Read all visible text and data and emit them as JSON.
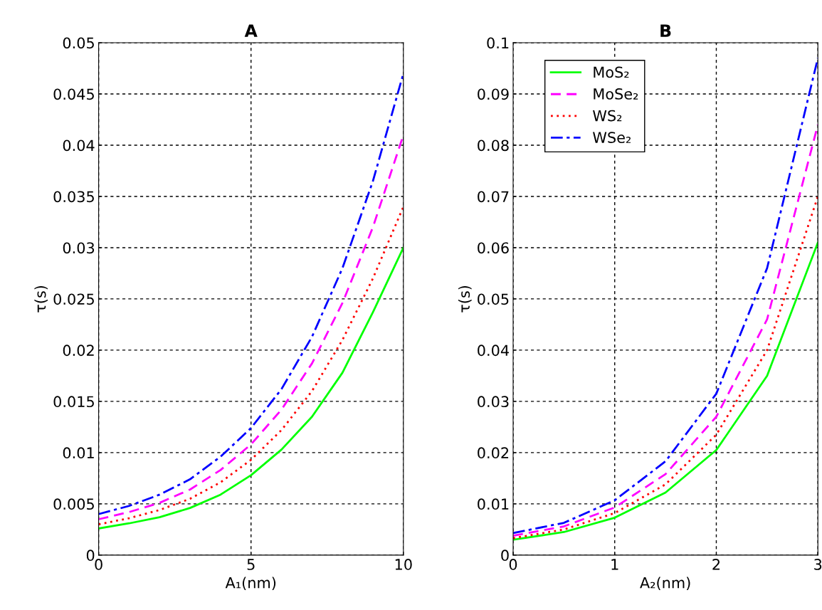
{
  "chart_data": [
    {
      "type": "line",
      "title": "A",
      "xlabel": "A₁(nm)",
      "ylabel": "τ(s)",
      "x": [
        0,
        1,
        2,
        3,
        4,
        5,
        6,
        7,
        8,
        9,
        10
      ],
      "series": [
        {
          "color": "#00ff00",
          "line_style": "solid",
          "values": [
            0.0026,
            0.0031,
            0.0037,
            0.0046,
            0.0059,
            0.0078,
            0.0103,
            0.0135,
            0.0178,
            0.0237,
            0.03
          ]
        },
        {
          "color": "#ff00ff",
          "line_style": "dashed",
          "values": [
            0.0035,
            0.0042,
            0.0051,
            0.0064,
            0.0083,
            0.0108,
            0.0142,
            0.0187,
            0.0246,
            0.032,
            0.041
          ]
        },
        {
          "color": "#ff0000",
          "line_style": "dotted",
          "values": [
            0.003,
            0.0036,
            0.0044,
            0.0055,
            0.0071,
            0.0093,
            0.0122,
            0.016,
            0.021,
            0.027,
            0.034
          ]
        },
        {
          "color": "#0000ff",
          "line_style": "dashdot",
          "values": [
            0.004,
            0.0048,
            0.0059,
            0.0074,
            0.0096,
            0.0124,
            0.0162,
            0.0213,
            0.028,
            0.0365,
            0.047
          ]
        }
      ],
      "xlim": [
        0,
        10
      ],
      "xticks": [
        0,
        5,
        10
      ],
      "ylim": [
        0,
        0.05
      ],
      "yticks": [
        0,
        0.005,
        0.01,
        0.015,
        0.02,
        0.025,
        0.03,
        0.035,
        0.04,
        0.045,
        0.05
      ],
      "grid": true
    },
    {
      "type": "line",
      "title": "B",
      "xlabel": "A₂(nm)",
      "ylabel": "τ(s)",
      "x": [
        0,
        0.5,
        1,
        1.5,
        2,
        2.5,
        3
      ],
      "series": [
        {
          "name": "MoS₂",
          "color": "#00ff00",
          "line_style": "solid",
          "values": [
            0.003,
            0.0045,
            0.0073,
            0.0122,
            0.0205,
            0.035,
            0.061
          ]
        },
        {
          "name": "MoSe₂",
          "color": "#ff00ff",
          "line_style": "dashed",
          "values": [
            0.0038,
            0.0056,
            0.0093,
            0.0158,
            0.027,
            0.046,
            0.084
          ]
        },
        {
          "name": "WS₂",
          "color": "#ff0000",
          "line_style": "dotted",
          "values": [
            0.0033,
            0.005,
            0.0082,
            0.0138,
            0.0235,
            0.04,
            0.07
          ]
        },
        {
          "name": "WSe₂",
          "color": "#0000ff",
          "line_style": "dashdot",
          "values": [
            0.0043,
            0.0063,
            0.0107,
            0.0183,
            0.0315,
            0.056,
            0.097
          ]
        }
      ],
      "xlim": [
        0,
        3
      ],
      "xticks": [
        0,
        1,
        2,
        3
      ],
      "ylim": [
        0,
        0.1
      ],
      "yticks": [
        0,
        0.01,
        0.02,
        0.03,
        0.04,
        0.05,
        0.06,
        0.07,
        0.08,
        0.09,
        0.1
      ],
      "grid": true,
      "legend": "top left"
    }
  ]
}
